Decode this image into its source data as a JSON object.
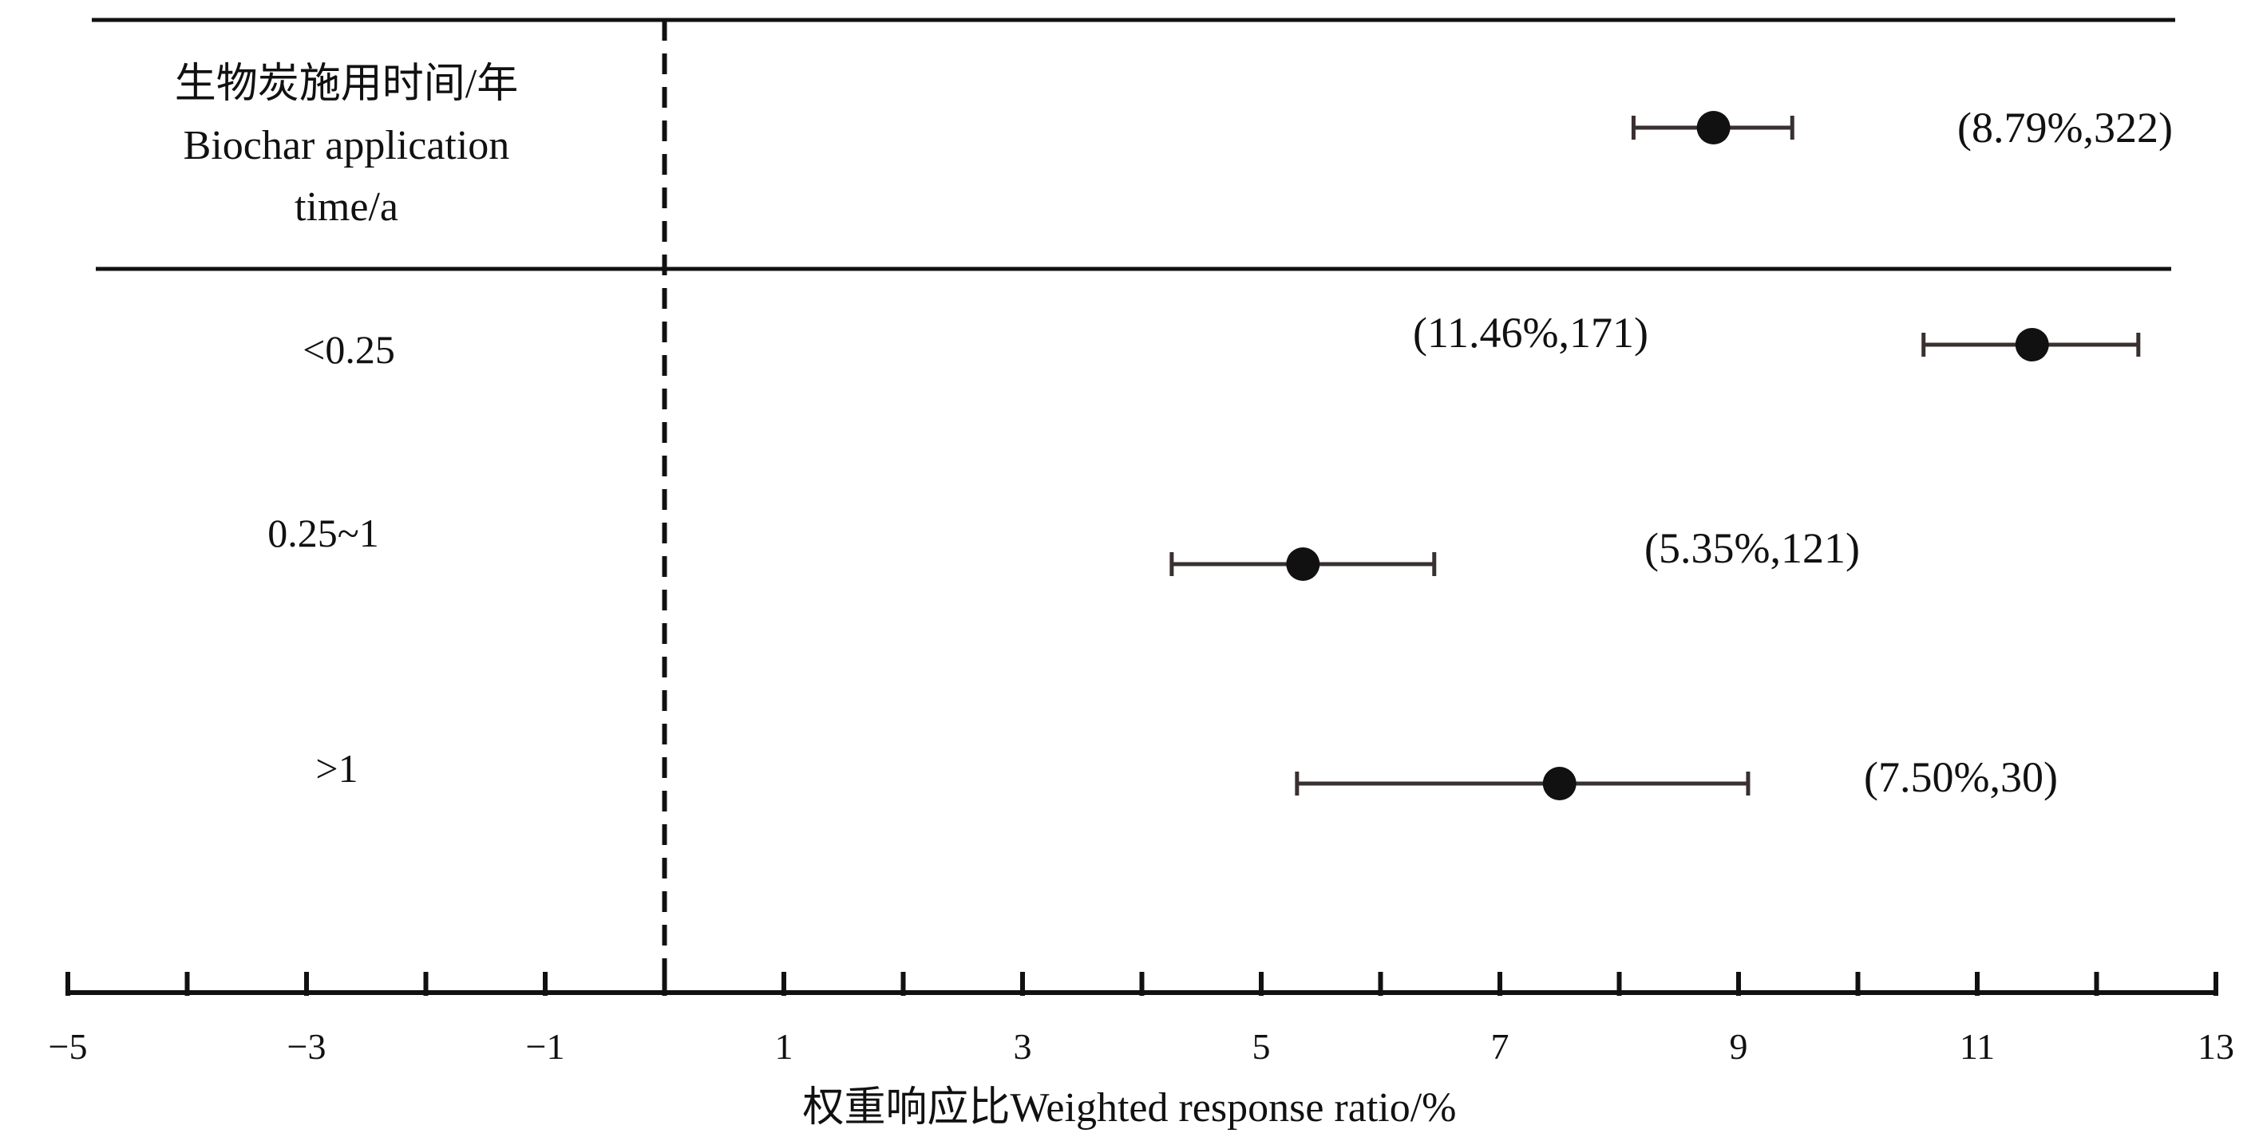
{
  "chart_data": {
    "type": "forest",
    "header": {
      "label_lines": [
        "生物炭施用时间/年",
        "Biochar application",
        "time/a"
      ],
      "value": 8.79,
      "ci": [
        8.12,
        9.45
      ],
      "annotation": "(8.79%,322)"
    },
    "rows": [
      {
        "label": "<0.25",
        "value": 11.46,
        "ci": [
          10.55,
          12.35
        ],
        "annotation": "(11.46%,171)"
      },
      {
        "label": "0.25~1",
        "value": 5.35,
        "ci": [
          4.25,
          6.45
        ],
        "annotation": "(5.35%,121)"
      },
      {
        "label": ">1",
        "value": 7.5,
        "ci": [
          5.3,
          9.08
        ],
        "annotation": "(7.50%,30)"
      }
    ],
    "xaxis": {
      "label": "权重响应比Weighted response ratio/%",
      "xlim": [
        -5,
        13
      ],
      "ticks": [
        -5,
        -4,
        -3,
        -2,
        -1,
        0,
        1,
        2,
        3,
        4,
        5,
        6,
        7,
        8,
        9,
        10,
        11,
        12,
        13
      ],
      "tick_labels": [
        {
          "value": -5,
          "text": "−5"
        },
        {
          "value": -3,
          "text": "−3"
        },
        {
          "value": -1,
          "text": "−1"
        },
        {
          "value": 1,
          "text": "1"
        },
        {
          "value": 3,
          "text": "3"
        },
        {
          "value": 5,
          "text": "5"
        },
        {
          "value": 7,
          "text": "7"
        },
        {
          "value": 9,
          "text": "9"
        },
        {
          "value": 11,
          "text": "11"
        },
        {
          "value": 13,
          "text": "13"
        }
      ]
    },
    "reference_line": 0,
    "colors": {
      "marker": "#111111",
      "errorbar": "#3a3030",
      "axis": "#111111"
    }
  }
}
